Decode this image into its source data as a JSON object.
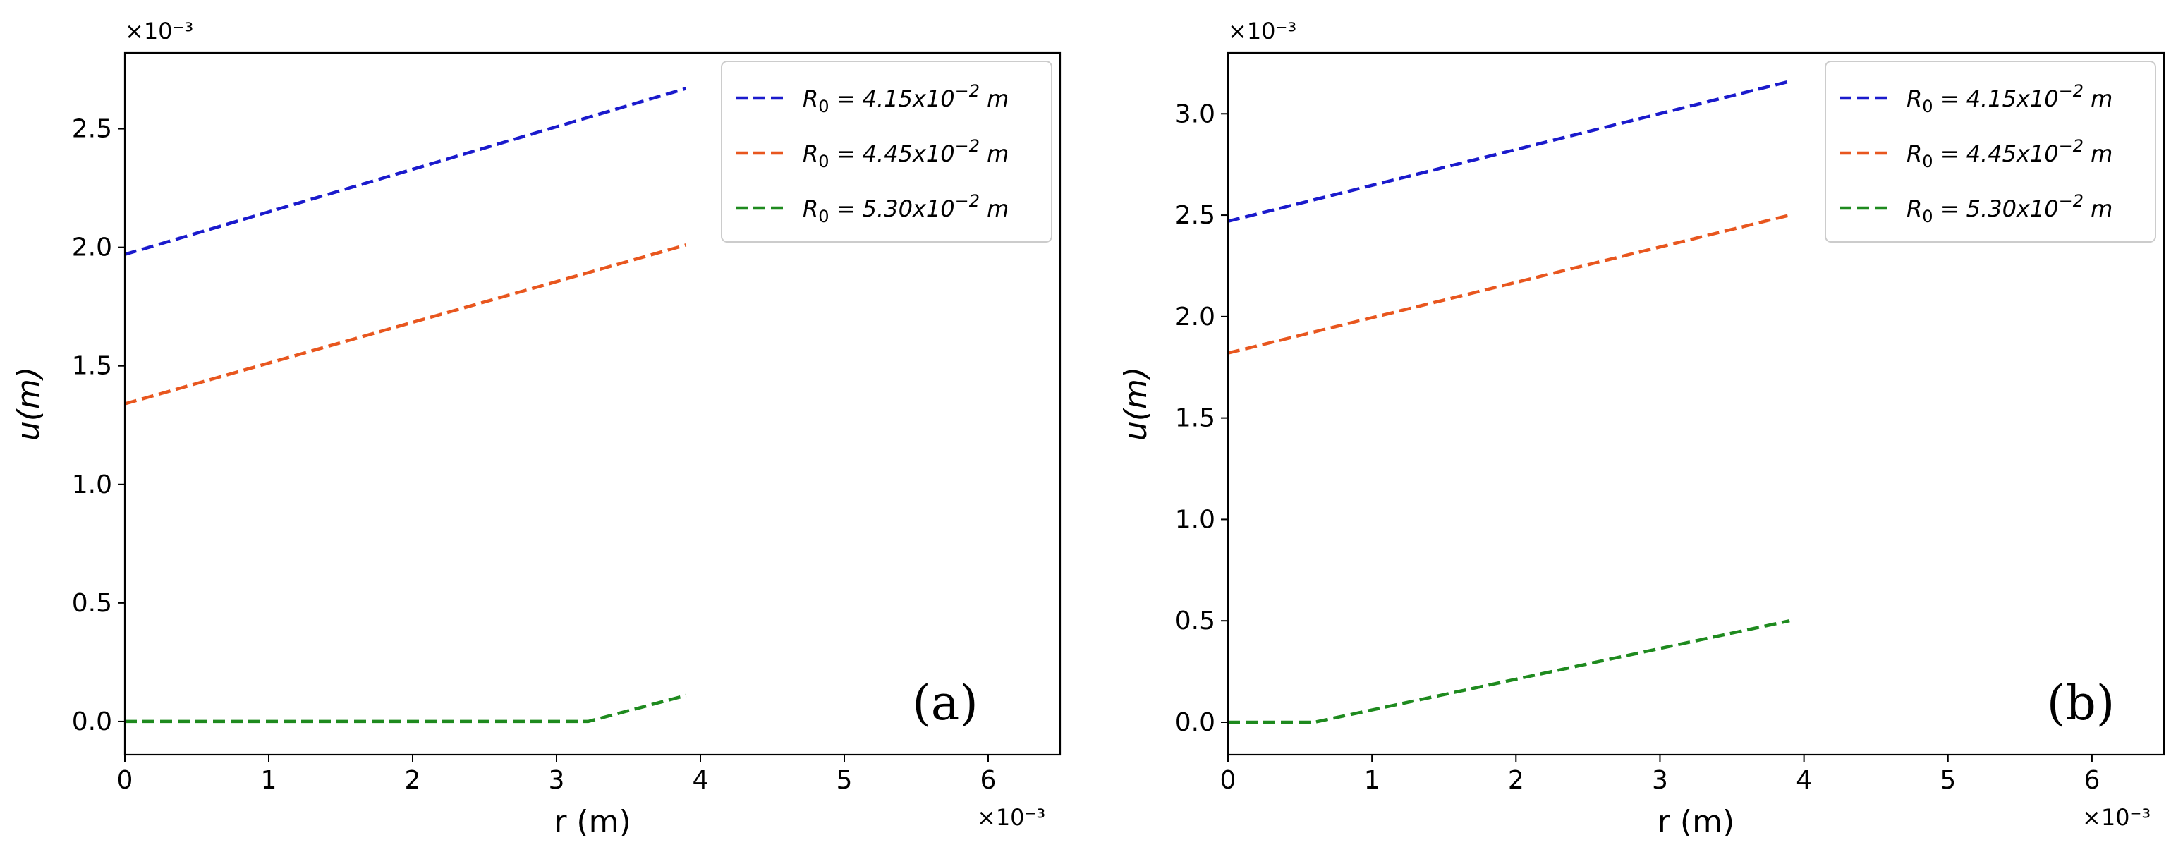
{
  "chart_data": [
    {
      "type": "line",
      "panel_label": "(a)",
      "xlabel": "r (m)",
      "ylabel": "u(m)",
      "x_multiplier": "×10⁻³",
      "y_multiplier": "×10⁻³",
      "xlim": [
        0,
        6.5
      ],
      "ylim": [
        -0.14,
        2.82
      ],
      "xticks": [
        0,
        1,
        2,
        3,
        4,
        5,
        6
      ],
      "xtick_labels": [
        "0",
        "1",
        "2",
        "3",
        "4",
        "5",
        "6"
      ],
      "yticks": [
        0.0,
        0.5,
        1.0,
        1.5,
        2.0,
        2.5
      ],
      "ytick_labels": [
        "0.0",
        "0.5",
        "1.0",
        "1.5",
        "2.0",
        "2.5"
      ],
      "legend_position": "top-right",
      "series": [
        {
          "name": "R₀ = 4.15x10⁻² m",
          "legend_base": "R",
          "legend_sub": "0",
          "legend_mid": " = 4.15x10",
          "legend_sup": "−2",
          "legend_unit": " m",
          "color": "#1a1acc",
          "x": [
            0,
            3.9
          ],
          "y": [
            1.97,
            2.67
          ]
        },
        {
          "name": "R₀ = 4.45x10⁻² m",
          "legend_base": "R",
          "legend_sub": "0",
          "legend_mid": " = 4.45x10",
          "legend_sup": "−2",
          "legend_unit": " m",
          "color": "#e8561e",
          "x": [
            0,
            3.9
          ],
          "y": [
            1.34,
            2.01
          ]
        },
        {
          "name": "R₀ = 5.30x10⁻² m",
          "legend_base": "R",
          "legend_sub": "0",
          "legend_mid": " = 5.30x10",
          "legend_sup": "−2",
          "legend_unit": " m",
          "color": "#1e8a1e",
          "x": [
            0,
            3.22,
            3.9
          ],
          "y": [
            0.0,
            0.0,
            0.11
          ]
        }
      ]
    },
    {
      "type": "line",
      "panel_label": "(b)",
      "xlabel": "r (m)",
      "ylabel": "u(m)",
      "x_multiplier": "×10⁻³",
      "y_multiplier": "×10⁻³",
      "xlim": [
        0,
        6.5
      ],
      "ylim": [
        -0.16,
        3.3
      ],
      "xticks": [
        0,
        1,
        2,
        3,
        4,
        5,
        6
      ],
      "xtick_labels": [
        "0",
        "1",
        "2",
        "3",
        "4",
        "5",
        "6"
      ],
      "yticks": [
        0.0,
        0.5,
        1.0,
        1.5,
        2.0,
        2.5,
        3.0
      ],
      "ytick_labels": [
        "0.0",
        "0.5",
        "1.0",
        "1.5",
        "2.0",
        "2.5",
        "3.0"
      ],
      "legend_position": "top-right",
      "series": [
        {
          "name": "R₀ = 4.15x10⁻² m",
          "legend_base": "R",
          "legend_sub": "0",
          "legend_mid": " = 4.15x10",
          "legend_sup": "−2",
          "legend_unit": " m",
          "color": "#1a1acc",
          "x": [
            0,
            3.9
          ],
          "y": [
            2.47,
            3.16
          ]
        },
        {
          "name": "R₀ = 4.45x10⁻² m",
          "legend_base": "R",
          "legend_sub": "0",
          "legend_mid": " = 4.45x10",
          "legend_sup": "−2",
          "legend_unit": " m",
          "color": "#e8561e",
          "x": [
            0,
            3.9
          ],
          "y": [
            1.82,
            2.5
          ]
        },
        {
          "name": "R₀ = 5.30x10⁻² m",
          "legend_base": "R",
          "legend_sub": "0",
          "legend_mid": " = 5.30x10",
          "legend_sup": "−2",
          "legend_unit": " m",
          "color": "#1e8a1e",
          "x": [
            0,
            0.6,
            3.9
          ],
          "y": [
            0.0,
            0.0,
            0.5
          ]
        }
      ]
    }
  ]
}
